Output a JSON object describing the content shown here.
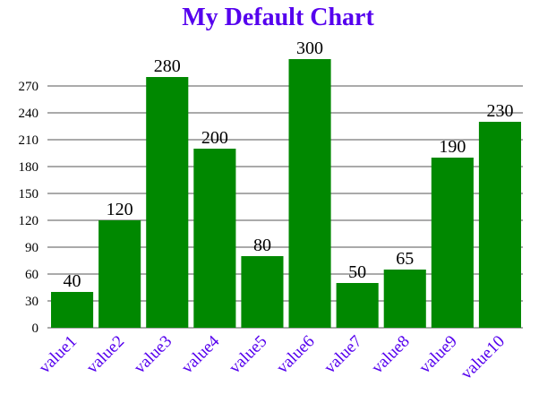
{
  "colors": {
    "title": "#5500ee",
    "bar": "#008800",
    "x_tick_label": "#5500ee",
    "y_tick_label": "#000000",
    "grid": "#555555",
    "data_label": "#000000"
  },
  "chart_data": {
    "type": "bar",
    "title": "My Default Chart",
    "xlabel": "",
    "ylabel": "",
    "categories": [
      "value1",
      "value2",
      "value3",
      "value4",
      "value5",
      "value6",
      "value7",
      "value8",
      "value9",
      "value10"
    ],
    "values": [
      40,
      120,
      280,
      200,
      80,
      300,
      50,
      65,
      190,
      230
    ],
    "ylim": [
      0,
      300
    ],
    "yticks": [
      0,
      30,
      60,
      90,
      120,
      150,
      180,
      210,
      240,
      270
    ],
    "grid": true,
    "legend": "none",
    "data_labels": true,
    "x_tick_rotation": -45
  }
}
